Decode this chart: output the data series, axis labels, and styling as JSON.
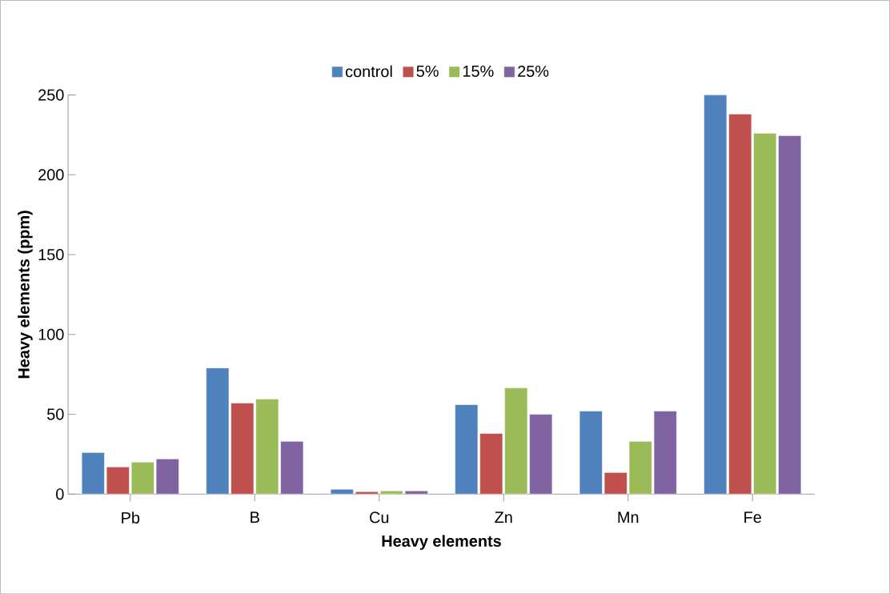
{
  "chart_data": {
    "type": "bar",
    "xlabel": "Heavy elements",
    "ylabel": "Heavy elements (ppm)",
    "categories": [
      "Pb",
      "B",
      "Cu",
      "Zn",
      "Mn",
      "Fe"
    ],
    "series": [
      {
        "name": "control",
        "color": "#4f81bd",
        "values": [
          26,
          79,
          3,
          56,
          52,
          250
        ]
      },
      {
        "name": "5%",
        "color": "#c0504d",
        "values": [
          17,
          57,
          1.5,
          38,
          13.5,
          238
        ]
      },
      {
        "name": "15%",
        "color": "#9bbb59",
        "values": [
          20,
          59.5,
          2,
          66.5,
          33,
          226
        ]
      },
      {
        "name": "25%",
        "color": "#8064a2",
        "values": [
          22,
          33,
          2,
          50,
          52,
          224.5
        ]
      }
    ],
    "ylim": [
      0,
      250
    ],
    "yticks": [
      0,
      50,
      100,
      150,
      200,
      250
    ],
    "grid": false,
    "legend": "top"
  }
}
